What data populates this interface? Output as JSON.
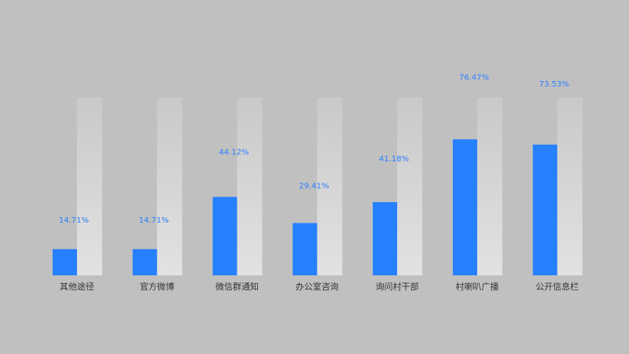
{
  "chart_data": {
    "type": "bar",
    "categories": [
      "其他途径",
      "官方微博",
      "微信群通知",
      "办公室咨询",
      "询问村干部",
      "村喇叭广播",
      "公开信息栏"
    ],
    "values": [
      14.71,
      14.71,
      44.12,
      29.41,
      41.18,
      76.47,
      73.53
    ],
    "value_labels": [
      "14.71%",
      "14.71%",
      "44.12%",
      "29.41%",
      "41.18%",
      "76.47%",
      "73.53%"
    ],
    "color": "#2680ff",
    "ylim": [
      0,
      100
    ]
  }
}
